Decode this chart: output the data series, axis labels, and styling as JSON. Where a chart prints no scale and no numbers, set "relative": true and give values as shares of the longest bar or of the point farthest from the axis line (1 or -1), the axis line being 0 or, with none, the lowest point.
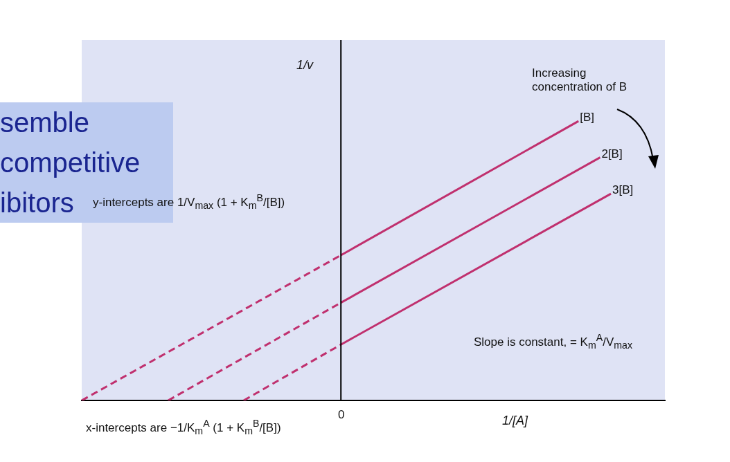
{
  "chart_data": {
    "type": "line",
    "relative": true,
    "xlabel": "1/[A]",
    "ylabel": "1/v",
    "legend": false,
    "marker": "none",
    "categories": [
      null,
      null,
      null,
      null,
      null,
      null,
      null,
      null,
      null,
      null,
      null,
      null,
      null,
      null,
      null,
      null,
      null,
      null,
      null,
      null,
      null,
      null,
      null,
      null,
      null,
      null,
      null,
      null,
      null,
      null,
      null,
      null,
      null,
      null,
      null,
      null,
      null,
      null,
      null,
      null,
      null,
      null,
      null,
      null,
      null,
      null,
      null,
      null,
      null,
      null,
      null,
      null,
      null,
      null,
      null
    ],
    "annotations": [
      "semble competitive ibitors",
      "Increasing concentration of B",
      "y-intercepts are 1/V$_{max}$ (1 + K$_{m}$$^{B}$/[B])",
      "x-intercepts are −1/K$_{m}$$^{A}$ (1 + K$_{m}$$^{B}$/[B])",
      "Slope is constant, = K$_{m}$$^{A}$/V$_{max}$",
      "0"
    ],
    "series": [
      {
        "color": "#c0306e",
        "line_style": "dashed",
        "values": [
          0,
          null,
          null,
          null,
          null,
          null,
          null,
          null,
          null,
          null,
          null,
          null,
          null,
          null,
          null,
          null,
          null,
          null,
          null,
          null,
          null,
          null,
          null,
          null,
          0.52,
          null,
          null,
          null,
          null,
          null,
          null,
          null,
          null,
          null,
          null,
          null,
          null,
          null,
          null,
          null,
          null,
          null,
          null,
          null,
          null,
          null,
          null,
          null,
          null,
          null,
          null,
          null,
          null,
          null,
          null
        ]
      },
      {
        "name": "[B]",
        "color": "#c0306e",
        "line_style": "solid",
        "values": [
          null,
          null,
          null,
          null,
          null,
          null,
          null,
          null,
          null,
          null,
          null,
          null,
          null,
          null,
          null,
          null,
          null,
          null,
          null,
          null,
          null,
          null,
          null,
          null,
          0.52,
          null,
          null,
          null,
          null,
          null,
          null,
          null,
          null,
          null,
          null,
          null,
          null,
          null,
          null,
          null,
          null,
          null,
          null,
          null,
          null,
          null,
          1,
          null,
          null,
          null,
          null,
          null,
          null,
          null,
          null
        ]
      },
      {
        "color": "#c0306e",
        "line_style": "dashed",
        "values": [
          null,
          null,
          null,
          null,
          null,
          null,
          null,
          null,
          0,
          null,
          null,
          null,
          null,
          null,
          null,
          null,
          null,
          null,
          null,
          null,
          null,
          null,
          null,
          null,
          0.35,
          null,
          null,
          null,
          null,
          null,
          null,
          null,
          null,
          null,
          null,
          null,
          null,
          null,
          null,
          null,
          null,
          null,
          null,
          null,
          null,
          null,
          null,
          null,
          null,
          null,
          null,
          null,
          null,
          null,
          null
        ]
      },
      {
        "name": "2[B]",
        "color": "#c0306e",
        "line_style": "solid",
        "values": [
          null,
          null,
          null,
          null,
          null,
          null,
          null,
          null,
          null,
          null,
          null,
          null,
          null,
          null,
          null,
          null,
          null,
          null,
          null,
          null,
          null,
          null,
          null,
          null,
          0.35,
          null,
          null,
          null,
          null,
          null,
          null,
          null,
          null,
          null,
          null,
          null,
          null,
          null,
          null,
          null,
          null,
          null,
          null,
          null,
          null,
          null,
          null,
          null,
          0.87,
          null,
          null,
          null,
          null,
          null,
          null
        ]
      },
      {
        "color": "#c0306e",
        "line_style": "dashed",
        "values": [
          null,
          null,
          null,
          null,
          null,
          null,
          null,
          null,
          null,
          null,
          null,
          null,
          null,
          null,
          null,
          0,
          null,
          null,
          null,
          null,
          null,
          null,
          null,
          null,
          0.2,
          null,
          null,
          null,
          null,
          null,
          null,
          null,
          null,
          null,
          null,
          null,
          null,
          null,
          null,
          null,
          null,
          null,
          null,
          null,
          null,
          null,
          null,
          null,
          null,
          null,
          null,
          null,
          null,
          null,
          null
        ]
      },
      {
        "name": "3[B]",
        "color": "#c0306e",
        "line_style": "solid",
        "values": [
          null,
          null,
          null,
          null,
          null,
          null,
          null,
          null,
          null,
          null,
          null,
          null,
          null,
          null,
          null,
          null,
          null,
          null,
          null,
          null,
          null,
          null,
          null,
          null,
          0.2,
          null,
          null,
          null,
          null,
          null,
          null,
          null,
          null,
          null,
          null,
          null,
          null,
          null,
          null,
          null,
          null,
          null,
          null,
          null,
          null,
          null,
          null,
          null,
          null,
          0.74,
          null,
          null,
          null,
          null,
          null
        ]
      }
    ]
  }
}
